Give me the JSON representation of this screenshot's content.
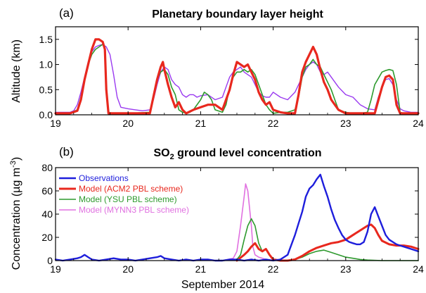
{
  "chart_data": [
    {
      "type": "line",
      "panel_label": "(a)",
      "title": "Planetary boundary layer height",
      "ylabel": "Altitude (km)",
      "xlabel": "",
      "xlim": [
        19,
        24
      ],
      "ylim": [
        0,
        1.75
      ],
      "xticks": [
        "19",
        "20",
        "21",
        "22",
        "23",
        "24"
      ],
      "yticks": [
        "0.0",
        "0.5",
        "1.0",
        "1.5"
      ],
      "series": [
        {
          "color": "#9A3AF0",
          "stroke": 1.4,
          "x": [
            19.0,
            19.1,
            19.2,
            19.25,
            19.3,
            19.35,
            19.4,
            19.45,
            19.5,
            19.55,
            19.6,
            19.65,
            19.7,
            19.75,
            19.8,
            19.85,
            19.9,
            20.0,
            20.1,
            20.2,
            20.3,
            20.35,
            20.4,
            20.45,
            20.5,
            20.55,
            20.6,
            20.65,
            20.7,
            20.75,
            20.8,
            20.85,
            20.9,
            20.95,
            21.0,
            21.1,
            21.2,
            21.3,
            21.35,
            21.4,
            21.45,
            21.5,
            21.55,
            21.6,
            21.65,
            21.7,
            21.75,
            21.8,
            21.85,
            21.9,
            21.95,
            22.0,
            22.1,
            22.2,
            22.3,
            22.4,
            22.45,
            22.5,
            22.55,
            22.6,
            22.65,
            22.7,
            22.75,
            22.8,
            22.9,
            23.0,
            23.1,
            23.2,
            23.3,
            23.4,
            23.45,
            23.5,
            23.55,
            23.6,
            23.65,
            23.7,
            23.75,
            23.8,
            23.9,
            24.0
          ],
          "y": [
            0.05,
            0.05,
            0.05,
            0.08,
            0.2,
            0.45,
            0.75,
            1.05,
            1.25,
            1.35,
            1.38,
            1.4,
            1.35,
            1.2,
            0.8,
            0.35,
            0.15,
            0.12,
            0.1,
            0.08,
            0.1,
            0.3,
            0.6,
            0.85,
            0.95,
            0.9,
            0.7,
            0.6,
            0.55,
            0.4,
            0.35,
            0.4,
            0.4,
            0.35,
            0.38,
            0.4,
            0.3,
            0.35,
            0.55,
            0.75,
            0.85,
            0.9,
            0.95,
            0.85,
            0.8,
            0.75,
            0.6,
            0.45,
            0.38,
            0.35,
            0.35,
            0.45,
            0.35,
            0.3,
            0.45,
            0.75,
            0.9,
            1.0,
            1.05,
            1.0,
            0.85,
            0.8,
            0.85,
            0.75,
            0.55,
            0.4,
            0.35,
            0.2,
            0.12,
            0.1,
            0.35,
            0.55,
            0.7,
            0.72,
            0.6,
            0.3,
            0.12,
            0.08,
            0.05,
            0.05
          ]
        },
        {
          "color": "#2E9A2E",
          "stroke": 1.6,
          "x": [
            19.0,
            19.2,
            19.3,
            19.35,
            19.4,
            19.45,
            19.5,
            19.55,
            19.6,
            19.65,
            19.68,
            19.7,
            19.73,
            19.8,
            19.9,
            20.0,
            20.3,
            20.35,
            20.4,
            20.45,
            20.5,
            20.55,
            20.6,
            20.65,
            20.7,
            20.75,
            20.8,
            20.85,
            20.9,
            21.0,
            21.05,
            21.1,
            21.15,
            21.2,
            21.3,
            21.35,
            21.4,
            21.45,
            21.5,
            21.55,
            21.6,
            21.65,
            21.7,
            21.75,
            21.8,
            21.85,
            21.9,
            21.95,
            22.0,
            22.1,
            22.2,
            22.3,
            22.35,
            22.4,
            22.45,
            22.5,
            22.55,
            22.6,
            22.65,
            22.7,
            22.75,
            22.8,
            22.85,
            22.9,
            23.0,
            23.1,
            23.2,
            23.3,
            23.35,
            23.4,
            23.5,
            23.55,
            23.6,
            23.65,
            23.7,
            23.75,
            23.8,
            24.0
          ],
          "y": [
            0.03,
            0.03,
            0.1,
            0.35,
            0.7,
            1.0,
            1.2,
            1.3,
            1.35,
            1.4,
            1.35,
            0.6,
            0.05,
            0.03,
            0.03,
            0.03,
            0.05,
            0.4,
            0.7,
            0.85,
            0.9,
            0.8,
            0.55,
            0.4,
            0.1,
            0.05,
            0.03,
            0.05,
            0.1,
            0.3,
            0.45,
            0.4,
            0.3,
            0.1,
            0.05,
            0.2,
            0.55,
            0.75,
            0.85,
            0.85,
            0.9,
            0.85,
            0.9,
            0.8,
            0.6,
            0.4,
            0.2,
            0.1,
            0.03,
            0.05,
            0.05,
            0.1,
            0.35,
            0.75,
            0.95,
            1.0,
            1.1,
            1.0,
            0.95,
            0.8,
            0.65,
            0.5,
            0.3,
            0.1,
            0.05,
            0.03,
            0.03,
            0.05,
            0.3,
            0.6,
            0.85,
            0.88,
            0.9,
            0.88,
            0.6,
            0.05,
            0.03,
            0.03
          ]
        },
        {
          "color": "#E8281E",
          "stroke": 3.2,
          "x": [
            19.0,
            19.2,
            19.3,
            19.35,
            19.4,
            19.45,
            19.5,
            19.55,
            19.6,
            19.65,
            19.68,
            19.7,
            19.73,
            19.8,
            20.0,
            20.3,
            20.4,
            20.45,
            20.48,
            20.5,
            20.55,
            20.6,
            20.65,
            20.7,
            20.75,
            20.8,
            20.9,
            21.0,
            21.1,
            21.15,
            21.2,
            21.3,
            21.4,
            21.45,
            21.5,
            21.55,
            21.6,
            21.65,
            21.7,
            21.75,
            21.8,
            21.85,
            21.9,
            21.95,
            22.0,
            22.1,
            22.2,
            22.3,
            22.35,
            22.4,
            22.45,
            22.5,
            22.55,
            22.6,
            22.65,
            22.7,
            22.75,
            22.8,
            22.9,
            23.0,
            23.2,
            23.4,
            23.5,
            23.55,
            23.6,
            23.65,
            23.7,
            23.75,
            23.8,
            24.0
          ],
          "y": [
            0.03,
            0.03,
            0.08,
            0.3,
            0.7,
            1.0,
            1.3,
            1.5,
            1.5,
            1.45,
            1.3,
            0.5,
            0.03,
            0.03,
            0.03,
            0.03,
            0.7,
            0.95,
            1.05,
            0.9,
            0.6,
            0.35,
            0.15,
            0.25,
            0.1,
            0.03,
            0.1,
            0.15,
            0.2,
            0.2,
            0.2,
            0.1,
            0.5,
            0.8,
            1.05,
            1.0,
            0.95,
            1.0,
            0.85,
            0.7,
            0.45,
            0.3,
            0.2,
            0.25,
            0.1,
            0.05,
            0.03,
            0.03,
            0.4,
            0.85,
            1.05,
            1.2,
            1.35,
            1.2,
            0.9,
            0.65,
            0.5,
            0.3,
            0.1,
            0.03,
            0.03,
            0.03,
            0.55,
            0.75,
            0.78,
            0.7,
            0.2,
            0.03,
            0.03,
            0.03
          ]
        }
      ]
    },
    {
      "type": "line",
      "panel_label": "(b)",
      "title_parts": [
        "SO",
        "2",
        " ground level concentration"
      ],
      "ylabel_parts": [
        "Concentration (",
        "µ",
        "g m",
        "-3",
        ")"
      ],
      "xlabel": "September 2014",
      "xlim": [
        19,
        24
      ],
      "ylim": [
        0,
        80
      ],
      "xticks": [
        "19",
        "20",
        "21",
        "22",
        "23",
        "24"
      ],
      "yticks": [
        "0",
        "20",
        "40",
        "60",
        "80"
      ],
      "legend_position": "top-left",
      "series": [
        {
          "name": "Model (MYNN3 PBL scheme)",
          "color": "#E070E0",
          "stroke": 1.6,
          "x": [
            21.3,
            21.45,
            21.5,
            21.55,
            21.6,
            21.62,
            21.65,
            21.7,
            21.72,
            21.75,
            21.8,
            21.85,
            21.9,
            21.95,
            22.0
          ],
          "y": [
            0,
            2,
            8,
            30,
            55,
            66,
            60,
            30,
            12,
            5,
            3,
            2,
            1,
            0,
            0
          ]
        },
        {
          "name": "Model (YSU PBL scheme)",
          "color": "#2E9A2E",
          "stroke": 1.6,
          "x": [
            21.3,
            21.5,
            21.55,
            21.6,
            21.65,
            21.7,
            21.75,
            21.8,
            21.85,
            21.9,
            21.95,
            22.0,
            22.1,
            22.2,
            22.3,
            22.4,
            22.5,
            22.6,
            22.7,
            22.8,
            22.9,
            23.0,
            23.1,
            23.2,
            23.3,
            23.5,
            23.7,
            24.0
          ],
          "y": [
            0,
            1,
            5,
            18,
            30,
            36,
            30,
            15,
            8,
            10,
            5,
            1,
            0,
            0,
            1,
            3,
            6,
            8,
            9,
            7,
            5,
            3,
            2,
            1,
            0.5,
            0,
            0,
            0
          ]
        },
        {
          "name": "Model (ACM2 PBL scheme)",
          "color": "#E8281E",
          "stroke": 3.0,
          "x": [
            21.5,
            21.6,
            21.65,
            21.7,
            21.75,
            21.8,
            21.85,
            21.9,
            21.95,
            22.0,
            22.1,
            22.2,
            22.3,
            22.4,
            22.5,
            22.6,
            22.7,
            22.8,
            22.9,
            23.0,
            23.1,
            23.2,
            23.3,
            23.35,
            23.4,
            23.45,
            23.5,
            23.6,
            23.7,
            23.8,
            23.9,
            24.0
          ],
          "y": [
            0,
            5,
            8,
            12,
            15,
            10,
            8,
            10,
            5,
            1,
            0,
            0,
            1,
            4,
            8,
            11,
            13,
            15,
            16,
            18,
            22,
            26,
            30,
            31,
            28,
            22,
            17,
            14,
            13,
            13,
            12,
            10
          ]
        },
        {
          "name": "Observations",
          "color": "#1E1EDC",
          "stroke": 2.4,
          "x": [
            19.0,
            19.1,
            19.2,
            19.3,
            19.35,
            19.4,
            19.45,
            19.5,
            19.6,
            19.7,
            19.8,
            19.9,
            20.0,
            20.1,
            20.2,
            20.3,
            20.4,
            20.45,
            20.5,
            20.6,
            20.7,
            20.8,
            20.9,
            21.0,
            21.1,
            21.2,
            21.3,
            21.4,
            21.5,
            21.6,
            21.7,
            21.8,
            21.9,
            22.0,
            22.1,
            22.2,
            22.3,
            22.35,
            22.4,
            22.45,
            22.5,
            22.55,
            22.6,
            22.65,
            22.7,
            22.75,
            22.8,
            22.85,
            22.9,
            22.95,
            23.0,
            23.05,
            23.1,
            23.15,
            23.2,
            23.25,
            23.3,
            23.35,
            23.4,
            23.45,
            23.5,
            23.55,
            23.6,
            23.65,
            23.7,
            23.75,
            23.8,
            23.85,
            23.9,
            23.95,
            24.0
          ],
          "y": [
            1,
            0,
            1,
            2,
            3,
            5,
            3,
            1,
            0,
            1,
            2,
            1,
            1,
            0,
            1,
            2,
            3,
            4,
            2,
            1,
            0,
            1,
            0,
            1,
            1,
            0,
            0,
            1,
            1,
            0,
            1,
            0,
            1,
            0,
            1,
            5,
            22,
            32,
            42,
            55,
            62,
            65,
            70,
            74,
            64,
            55,
            44,
            35,
            28,
            22,
            18,
            16,
            15,
            14,
            14,
            16,
            25,
            40,
            46,
            38,
            30,
            22,
            18,
            16,
            14,
            13,
            12,
            11,
            10,
            9,
            8
          ]
        }
      ]
    }
  ]
}
